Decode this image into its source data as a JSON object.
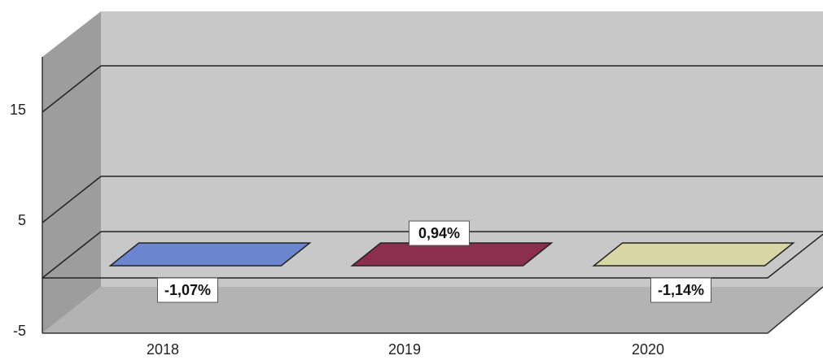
{
  "chart_data": {
    "type": "bar",
    "style": "3d",
    "categories": [
      "2018",
      "2019",
      "2020"
    ],
    "values": [
      -1.07,
      0.94,
      -1.14
    ],
    "data_labels": [
      "-1,07%",
      "0,94%",
      "-1,14%"
    ],
    "colors": [
      "#6b86cf",
      "#8c2f4f",
      "#d9d6a6"
    ],
    "ylim": [
      -5,
      20
    ],
    "yticks": [
      -5,
      5,
      15
    ],
    "ytick_labels": [
      "-5",
      "5",
      "15"
    ],
    "grid": true,
    "title": "",
    "xlabel": "",
    "ylabel": ""
  }
}
